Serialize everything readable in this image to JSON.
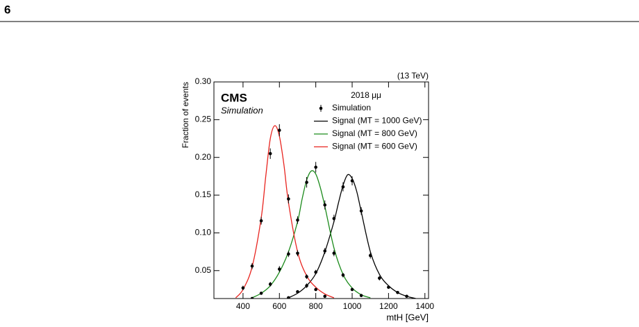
{
  "page_number": "6",
  "chart_data": {
    "type": "line",
    "energy_label": "(13 TeV)",
    "experiment": "CMS",
    "subtitle": "Simulation",
    "legend_title": "2018 μμ",
    "ylabel": "Fraction of events",
    "xlabel": "mtH [GeV]",
    "xlim": [
      240,
      1420
    ],
    "ylim": [
      0.013,
      0.3
    ],
    "xticks": [
      400,
      600,
      800,
      1000,
      1200,
      1400
    ],
    "yticks": [
      0.05,
      {
        "value": 0.1,
        "label": "0.10"
      },
      0.15,
      {
        "value": 0.2,
        "label": "0.20"
      },
      0.25,
      {
        "value": 0.3,
        "label": "0.30"
      }
    ],
    "legend": "upper right",
    "simulation": {
      "name": "Simulation",
      "color": "#000000",
      "x": [
        400,
        450,
        500,
        550,
        600,
        650,
        700,
        750,
        800,
        850,
        900,
        950,
        1000,
        1050,
        1100,
        1150,
        1200,
        1250,
        1300
      ],
      "sets": [
        {
          "values": [
            0.027,
            0.056,
            0.116,
            0.205,
            0.236,
            0.145,
            0.073,
            0.042,
            0.025,
            0.016,
            null,
            null,
            null,
            null,
            null,
            null,
            null,
            null,
            null
          ],
          "errors": [
            0.003,
            0.004,
            0.005,
            0.007,
            0.008,
            0.006,
            0.004,
            0.003,
            0.002,
            0.002,
            null,
            null,
            null,
            null,
            null,
            null,
            null,
            null,
            null
          ]
        },
        {
          "values": [
            null,
            0.013,
            0.02,
            0.032,
            0.052,
            0.072,
            0.117,
            0.167,
            0.187,
            0.137,
            0.073,
            0.044,
            0.025,
            0.017,
            null,
            null,
            null,
            null,
            null
          ],
          "errors": [
            null,
            0.002,
            0.002,
            0.003,
            0.004,
            0.004,
            0.005,
            0.007,
            0.007,
            0.006,
            0.004,
            0.003,
            0.002,
            0.002,
            null,
            null,
            null,
            null,
            null
          ]
        },
        {
          "values": [
            null,
            null,
            null,
            null,
            null,
            0.014,
            0.022,
            0.03,
            0.048,
            0.076,
            0.119,
            0.161,
            0.169,
            0.129,
            0.07,
            0.04,
            0.028,
            0.021,
            0.016
          ],
          "errors": [
            null,
            null,
            null,
            null,
            null,
            0.002,
            0.002,
            0.003,
            0.003,
            0.004,
            0.005,
            0.006,
            0.006,
            0.005,
            0.004,
            0.003,
            0.002,
            0.002,
            0.002
          ]
        }
      ]
    },
    "series": [
      {
        "name": "Signal (MT = 1000 GeV)",
        "color": "#000000",
        "x": [
          650,
          700,
          750,
          800,
          850,
          900,
          925,
          950,
          975,
          1000,
          1025,
          1050,
          1100,
          1150,
          1200,
          1250,
          1300,
          1350
        ],
        "values": [
          0.014,
          0.02,
          0.03,
          0.046,
          0.075,
          0.115,
          0.14,
          0.163,
          0.177,
          0.172,
          0.155,
          0.128,
          0.075,
          0.045,
          0.03,
          0.021,
          0.016,
          0.013
        ]
      },
      {
        "name": "Signal (MT = 800 GeV)",
        "color": "#1a8a1a",
        "x": [
          450,
          500,
          550,
          600,
          650,
          700,
          725,
          750,
          775,
          800,
          825,
          850,
          900,
          950,
          1000,
          1050,
          1100
        ],
        "values": [
          0.014,
          0.02,
          0.03,
          0.048,
          0.075,
          0.115,
          0.145,
          0.17,
          0.182,
          0.178,
          0.16,
          0.135,
          0.08,
          0.045,
          0.027,
          0.018,
          0.014
        ]
      },
      {
        "name": "Signal (MT = 600 GeV)",
        "color": "#e8231e",
        "x": [
          360,
          400,
          450,
          500,
          525,
          550,
          575,
          600,
          625,
          650,
          700,
          750,
          800,
          850,
          900
        ],
        "values": [
          0.014,
          0.025,
          0.055,
          0.12,
          0.175,
          0.225,
          0.242,
          0.228,
          0.19,
          0.14,
          0.075,
          0.043,
          0.028,
          0.019,
          0.014
        ]
      }
    ]
  }
}
